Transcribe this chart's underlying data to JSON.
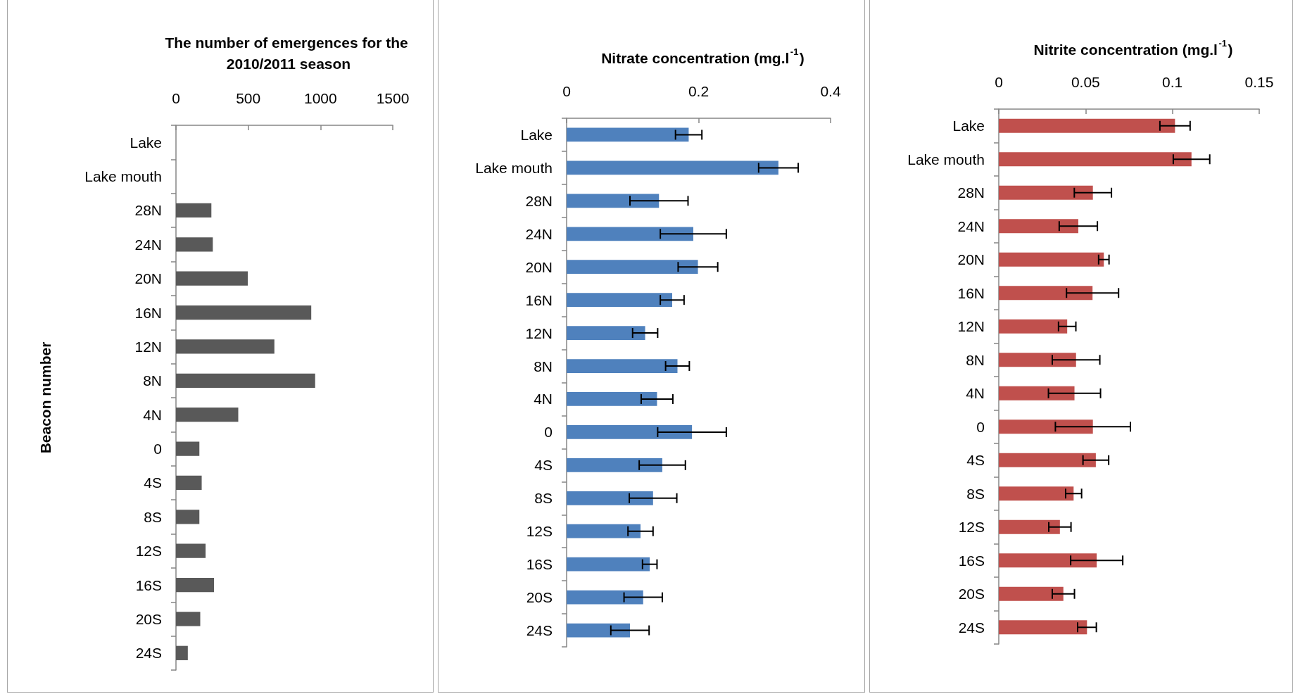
{
  "chart_data": [
    {
      "type": "bar",
      "orientation": "horizontal",
      "title": "The number of emergences for the 2010/2011 season",
      "ylabel": "Beacon number",
      "categories": [
        "Lake",
        "Lake mouth",
        "28N",
        "24N",
        "20N",
        "16N",
        "12N",
        "8N",
        "4N",
        "0",
        "4S",
        "8S",
        "12S",
        "16S",
        "20S",
        "24S"
      ],
      "values": [
        null,
        null,
        245,
        255,
        497,
        936,
        681,
        963,
        431,
        162,
        178,
        162,
        205,
        263,
        168,
        82
      ],
      "color": "#595959",
      "xlim": [
        0,
        1500
      ],
      "xticks": [
        0,
        500,
        1000,
        1500
      ],
      "grid": false
    },
    {
      "type": "bar",
      "orientation": "horizontal",
      "title": "Nitrate concentration (mg.l$^{-1}$)",
      "categories": [
        "Lake",
        "Lake mouth",
        "28N",
        "24N",
        "20N",
        "16N",
        "12N",
        "8N",
        "4N",
        "0",
        "4S",
        "8S",
        "12S",
        "16S",
        "20S",
        "24S"
      ],
      "values": [
        0.185,
        0.321,
        0.14,
        0.192,
        0.199,
        0.16,
        0.119,
        0.168,
        0.137,
        0.19,
        0.145,
        0.131,
        0.112,
        0.126,
        0.116,
        0.096
      ],
      "errors": [
        0.02,
        0.03,
        0.044,
        0.05,
        0.03,
        0.018,
        0.019,
        0.018,
        0.024,
        0.052,
        0.035,
        0.036,
        0.019,
        0.011,
        0.029,
        0.029
      ],
      "color": "#4f81bd",
      "xlim": [
        0,
        0.4
      ],
      "xticks": [
        0,
        0.2,
        0.4
      ],
      "grid": false
    },
    {
      "type": "bar",
      "orientation": "horizontal",
      "title": "Nitrite concentration (mg.l$^{-1}$)",
      "categories": [
        "Lake",
        "Lake mouth",
        "28N",
        "24N",
        "20N",
        "16N",
        "12N",
        "8N",
        "4N",
        "0",
        "4S",
        "8S",
        "12S",
        "16S",
        "20S",
        "24S"
      ],
      "values": [
        0.1015,
        0.111,
        0.0542,
        0.0458,
        0.0605,
        0.054,
        0.0394,
        0.0445,
        0.0436,
        0.0542,
        0.0559,
        0.0431,
        0.0352,
        0.0564,
        0.0372,
        0.0508
      ],
      "errors": [
        0.0087,
        0.0105,
        0.0107,
        0.011,
        0.003,
        0.015,
        0.005,
        0.0137,
        0.015,
        0.0216,
        0.0074,
        0.0046,
        0.0064,
        0.015,
        0.0064,
        0.0054
      ],
      "color": "#c0504d",
      "xlim": [
        0,
        0.15
      ],
      "xticks": [
        0,
        0.05,
        0.1,
        0.15
      ],
      "grid": false
    }
  ]
}
